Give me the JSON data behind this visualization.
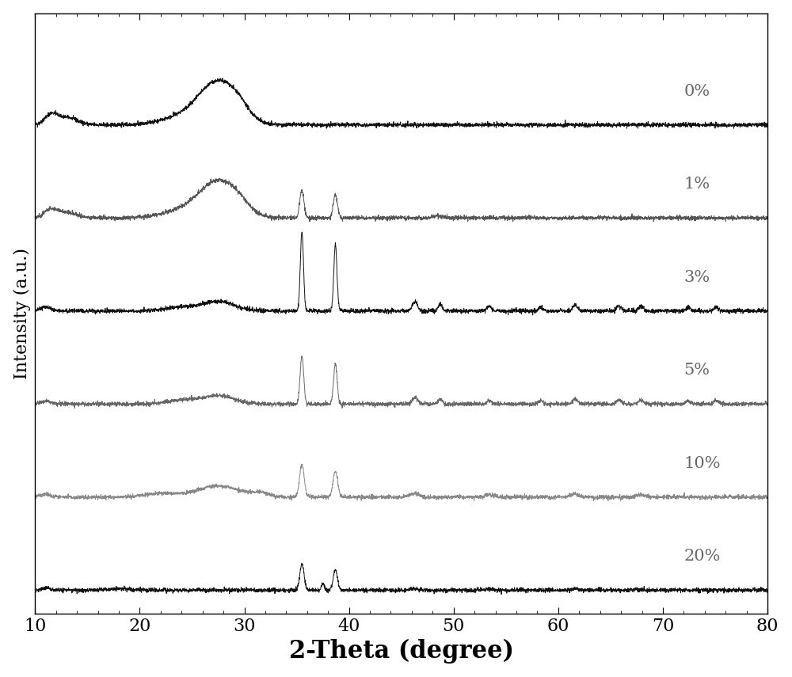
{
  "title": "",
  "xlabel": "2-Theta (degree)",
  "ylabel": "Intensity (a.u.)",
  "xlim": [
    10,
    80
  ],
  "x_ticks": [
    10,
    20,
    30,
    40,
    50,
    60,
    70,
    80
  ],
  "labels": [
    "0%",
    "1%",
    "3%",
    "5%",
    "10%",
    "20%"
  ],
  "colors": [
    "#111111",
    "#555555",
    "#111111",
    "#666666",
    "#888888",
    "#111111"
  ],
  "offsets": [
    5.0,
    4.0,
    3.0,
    2.0,
    1.0,
    0.0
  ],
  "background_color": "#ffffff",
  "xlabel_fontsize": 22,
  "ylabel_fontsize": 16,
  "tick_fontsize": 16,
  "label_fontsize": 15,
  "label_color": "#666666"
}
